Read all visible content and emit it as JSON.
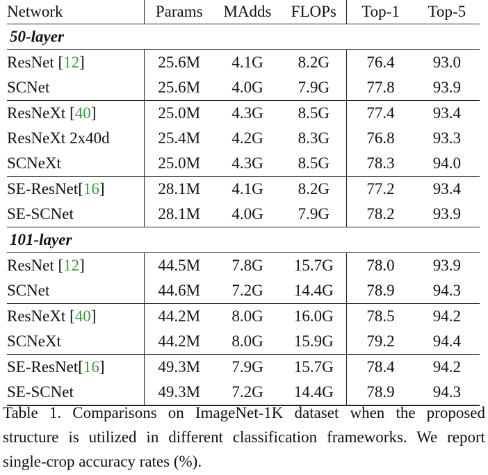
{
  "table": {
    "columns": [
      "Network",
      "Params",
      "MAdds",
      "FLOPs",
      "Top-1",
      "Top-5"
    ],
    "sections": [
      {
        "title": "50-layer",
        "groups": [
          [
            {
              "name": "ResNet",
              "ref": "12",
              "ref_space": " ",
              "params": "25.6M",
              "madds": "4.1G",
              "flops": "8.2G",
              "top1": "76.4",
              "top5": "93.0"
            },
            {
              "name": "SCNet",
              "ref": "",
              "ref_space": "",
              "params": "25.6M",
              "madds": "4.0G",
              "flops": "7.9G",
              "top1": "77.8",
              "top5": "93.9"
            }
          ],
          [
            {
              "name": "ResNeXt",
              "ref": "40",
              "ref_space": " ",
              "params": "25.0M",
              "madds": "4.3G",
              "flops": "8.5G",
              "top1": "77.4",
              "top5": "93.4"
            },
            {
              "name": "ResNeXt 2x40d",
              "ref": "",
              "ref_space": "",
              "params": "25.4M",
              "madds": "4.2G",
              "flops": "8.3G",
              "top1": "76.8",
              "top5": "93.3"
            },
            {
              "name": "SCNeXt",
              "ref": "",
              "ref_space": "",
              "params": "25.0M",
              "madds": "4.3G",
              "flops": "8.5G",
              "top1": "78.3",
              "top5": "94.0"
            }
          ],
          [
            {
              "name": "SE-ResNet",
              "ref": "16",
              "ref_space": "",
              "params": "28.1M",
              "madds": "4.1G",
              "flops": "8.2G",
              "top1": "77.2",
              "top5": "93.4"
            },
            {
              "name": "SE-SCNet",
              "ref": "",
              "ref_space": "",
              "params": "28.1M",
              "madds": "4.0G",
              "flops": "7.9G",
              "top1": "78.2",
              "top5": "93.9"
            }
          ]
        ]
      },
      {
        "title": "101-layer",
        "groups": [
          [
            {
              "name": "ResNet",
              "ref": "12",
              "ref_space": " ",
              "params": "44.5M",
              "madds": "7.8G",
              "flops": "15.7G",
              "top1": "78.0",
              "top5": "93.9"
            },
            {
              "name": "SCNet",
              "ref": "",
              "ref_space": "",
              "params": "44.6M",
              "madds": "7.2G",
              "flops": "14.4G",
              "top1": "78.9",
              "top5": "94.3"
            }
          ],
          [
            {
              "name": "ResNeXt",
              "ref": "40",
              "ref_space": " ",
              "params": "44.2M",
              "madds": "8.0G",
              "flops": "16.0G",
              "top1": "78.5",
              "top5": "94.2"
            },
            {
              "name": "SCNeXt",
              "ref": "",
              "ref_space": "",
              "params": "44.2M",
              "madds": "8.0G",
              "flops": "15.9G",
              "top1": "79.2",
              "top5": "94.4"
            }
          ],
          [
            {
              "name": "SE-ResNet",
              "ref": "16",
              "ref_space": "",
              "params": "49.3M",
              "madds": "7.9G",
              "flops": "15.7G",
              "top1": "78.4",
              "top5": "94.2"
            },
            {
              "name": "SE-SCNet",
              "ref": "",
              "ref_space": "",
              "params": "49.3M",
              "madds": "7.2G",
              "flops": "14.4G",
              "top1": "78.9",
              "top5": "94.3"
            }
          ]
        ]
      }
    ]
  },
  "caption": "Table 1. Comparisons on ImageNet-1K dataset when the proposed structure is utilized in different classification frameworks. We report single-crop accuracy rates (%).",
  "colors": {
    "reference_link": "#3a9a3a",
    "text": "#111111",
    "rule": "#222222"
  }
}
